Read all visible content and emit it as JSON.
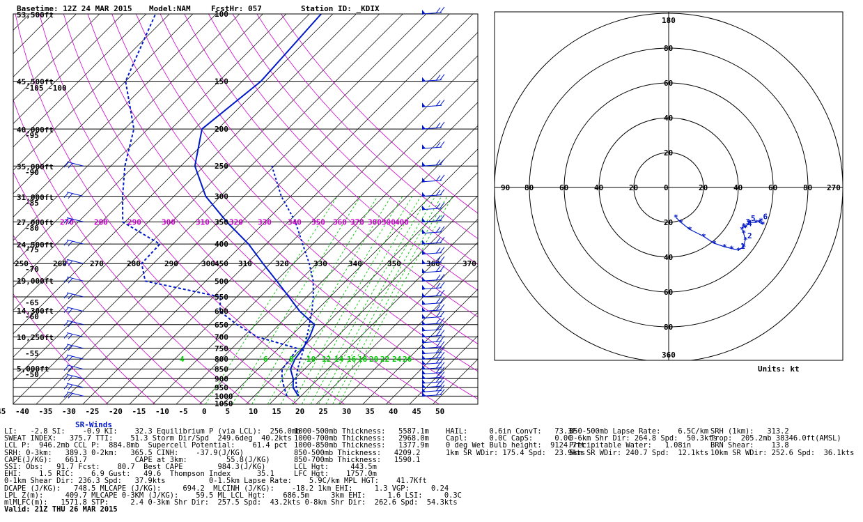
{
  "header": {
    "basetime": "Basetime: 12Z 24 MAR 2015",
    "model": "Model:NAM",
    "fcsthr": "FcstHr: 057",
    "station": "Station ID: _KDIX"
  },
  "skewt": {
    "temp_axis": [
      "-45",
      "-40",
      "-35",
      "-30",
      "-25",
      "-20",
      "-15",
      "-10",
      "-5",
      "0",
      "5",
      "10",
      "15",
      "20",
      "25",
      "30",
      "35",
      "40",
      "45",
      "50"
    ],
    "pressure_labels": [
      "100",
      "150",
      "200",
      "250",
      "300",
      "350",
      "400",
      "450",
      "500",
      "550",
      "600",
      "650",
      "700",
      "750",
      "800",
      "850",
      "900",
      "950",
      "1000",
      "1050"
    ],
    "altitude_labels": [
      "53,500ft",
      "45,500ft",
      "40,000ft",
      "35,000ft",
      "31,000ft",
      "27,000ft",
      "24,500ft",
      "19,000ft",
      "14,300ft",
      "10,250ft",
      "5,000ft"
    ],
    "left_temp_labels": [
      "-105 -100",
      "-95",
      "-90",
      "-85",
      "-80",
      "-75",
      "-70",
      "-65",
      "-60",
      "-55",
      "-50"
    ],
    "theta_labels_magenta": [
      "270",
      "280",
      "290",
      "300",
      "310",
      "320",
      "330",
      "340",
      "350",
      "360",
      "370",
      "380",
      "390",
      "400"
    ],
    "theta_labels_black": [
      "250",
      "260",
      "270",
      "280",
      "290",
      "300",
      "310",
      "320",
      "330",
      "340",
      "350",
      "360",
      "370"
    ],
    "mixing_ratio_labels": [
      "4",
      "6",
      "8",
      "10",
      "12",
      "14",
      "16",
      "18",
      "20",
      "22",
      "24",
      "26"
    ]
  },
  "hodograph": {
    "rings": [
      "20",
      "40",
      "60",
      "80"
    ],
    "top_label": "180",
    "bottom_label": "360",
    "left_label": "90",
    "right_label": "270",
    "height_markers": [
      "1",
      "2",
      "3",
      "4",
      "5",
      "6"
    ],
    "units_label": "Units: kt"
  },
  "winds_title": "SR-Winds",
  "params": [
    [
      "LI:   -2.8 SI:    -0.9 KI:    32.3 Equilibrium P (via LCL):  256.0mb",
      "1000-500mb Thickness:   5587.1m",
      "HAIL:     0.6in ConvT:   73.3F",
      "850-500mb Lapse Rate:    6.5C/km",
      "SRH (1km):   313.2"
    ],
    [
      "SWEAT INDEX:   375.7 TTI:    51.3 Storm Dir/Spd  249.6deg  40.2kts",
      "1000-700mb Thickness:   2968.0m",
      "Capl:     0.0C CapS:     0.0C",
      "0-6km Shr Dir: 264.8 Spd:  50.3kts",
      "Trop:  205.2mb 38346.0ft(AMSL)"
    ],
    [
      "LCL P:  946.2mb CCL P:  884.8mb  Supercell Potential:    61.4 pct",
      "1000-850mb Thickness:   1377.9m",
      "0 deg Wet Bulb height:  9124.7ft",
      "Precipitable Water:   1.08in",
      "BRN Shear:    13.8"
    ],
    [
      "SRH: 0-3km:   389.3 0-2km:   365.5 CINH:    -37.9(J/KG)",
      "850-500mb Thickness:   4209.2",
      "1km SR WDir: 175.4 Spd:  23.9kts",
      "5km SR WDir: 240.7 Spd:  12.1kts",
      "10km SR WDir: 252.6 Spd:  36.1kts"
    ],
    [
      "CAPE(J/KG):   661.7           CAPE at 3km:         55.8(J/KG)",
      "850-700mb Thickness:   1590.1",
      "",
      "",
      ""
    ],
    [
      "SSI: Obs:   91.7 Fcst:    80.7  Best CAPE        984.3(J/KG)",
      "LCL Hgt:     443.5m",
      "",
      "",
      ""
    ],
    [
      "EHI:    1.5 RIC:    6.9 Gust:   49.6  Thompson Index      35.1",
      "LFC Hgt:    1757.0m",
      "",
      "",
      ""
    ],
    [
      "0-1km Shear Dir: 236.3 Spd:   37.9kts          0-1.5km Lapse Rate:    5.9C/km MPL HGT:    41.7Kft",
      "",
      "",
      "",
      ""
    ],
    [
      "DCAPE (J/KG):   748.5 MLCAPE (J/KG):     694.2  MLCINH (J/KG):    -18.2 1km EHI:     1.3 VGP:     0.24",
      "",
      "",
      "",
      ""
    ],
    [
      "LPL Z(m):     409.7 MLCAPE 0-3KM (J/KG):    59.5 ML LCL Hgt:    686.5m     3km EHI:     1.6 LSI:     0.3C",
      "",
      "",
      "",
      ""
    ],
    [
      "mlMLFC(m):   1571.8 STP:     2.4 0-3km Shr Dir:  257.5 Spd:  43.2kts 0-8km Shr Dir:  262.6 Spd:  54.3kts",
      "",
      "",
      "",
      ""
    ]
  ],
  "valid": "Valid: 21Z THU 26 MAR 2015",
  "colors": {
    "temp": "#0019c8",
    "dewpoint": "#0019c8",
    "dry_adiabat": "#cc00cc",
    "mixing_ratio": "#00c800",
    "grid": "#000000",
    "hodo_trace": "#0019c8",
    "winds_title": "#0019c8"
  },
  "chart_data": [
    {
      "type": "line",
      "title": "",
      "xlabel": "Temperature (C)",
      "ylabel": "Pressure (mb)",
      "xlim": [
        -45,
        50
      ],
      "ylim": [
        1050,
        100
      ],
      "log_y": true,
      "series": [
        {
          "name": "temperature",
          "pressure": [
            1000,
            950,
            900,
            850,
            800,
            750,
            700,
            650,
            600,
            550,
            500,
            450,
            400,
            350,
            300,
            250,
            200,
            150,
            100
          ],
          "values": [
            19.5,
            16.5,
            14.6,
            12.0,
            10.8,
            10.2,
            9.2,
            7.6,
            1.6,
            -3.8,
            -9.8,
            -16.5,
            -23.8,
            -33.2,
            -43.2,
            -52.0,
            -58.4,
            -56.0,
            -57.5
          ]
        },
        {
          "name": "dewpoint",
          "pressure": [
            1000,
            950,
            900,
            850,
            800,
            750,
            700,
            650,
            600,
            550,
            500,
            450,
            400,
            350,
            300,
            250,
            200,
            150,
            100
          ],
          "values": [
            17.0,
            14.6,
            12.2,
            10.2,
            9.8,
            9.0,
            -2.0,
            -9.0,
            -15.5,
            -18.5,
            -38.0,
            -42.5,
            -42.8,
            -55.5,
            -61.0,
            -67.0,
            -73.0,
            -85.0,
            -93.0
          ]
        },
        {
          "name": "parcel",
          "pressure": [
            1000,
            950,
            900,
            850,
            800,
            750,
            700,
            650,
            600,
            550,
            500,
            450,
            400,
            350,
            300,
            250
          ],
          "values": [
            19.5,
            17.2,
            15.2,
            13.5,
            12.0,
            10.4,
            8.6,
            6.5,
            4.2,
            1.4,
            -2.0,
            -6.6,
            -12.2,
            -18.5,
            -27.0,
            -35.5
          ]
        }
      ]
    },
    {
      "type": "line",
      "title": "",
      "xlabel": "u (kt)",
      "ylabel": "v (kt)",
      "xlim": [
        -90,
        90
      ],
      "ylim": [
        -100,
        100
      ],
      "series": [
        {
          "name": "hodograph",
          "u": [
            4,
            7,
            12,
            20,
            26,
            32,
            36,
            40,
            43,
            44,
            43,
            42,
            43,
            44,
            46,
            50,
            53,
            54,
            52
          ],
          "v": [
            -17,
            -20,
            -24,
            -28,
            -32,
            -34,
            -35,
            -36,
            -34,
            -30,
            -26,
            -24,
            -22,
            -23,
            -20,
            -20,
            -19,
            -21,
            -20
          ]
        }
      ]
    }
  ]
}
